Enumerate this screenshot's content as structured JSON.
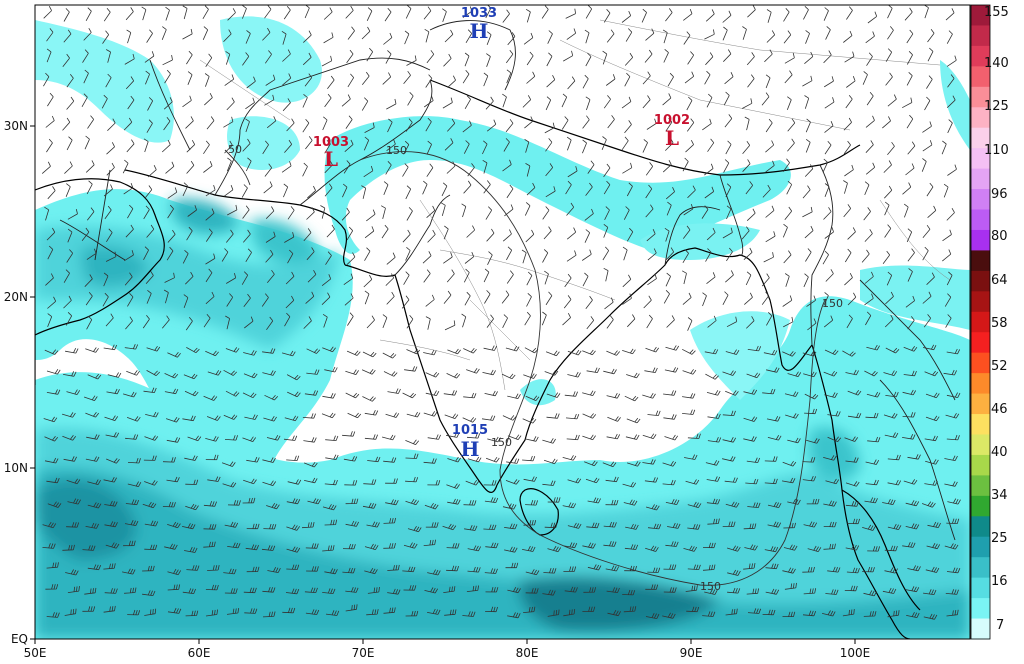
{
  "map": {
    "lat_labels": [
      "30N",
      "20N",
      "10N",
      "EQ"
    ],
    "lon_labels": [
      "50E",
      "60E",
      "70E",
      "80E",
      "90E",
      "100E"
    ],
    "pressure_centers": [
      {
        "value": "1033",
        "type": "H",
        "color": "#1f3fb5"
      },
      {
        "value": "1003",
        "type": "L",
        "color": "#c8102e"
      },
      {
        "value": "1002",
        "type": "L",
        "color": "#c8102e"
      },
      {
        "value": "1015",
        "type": "H",
        "color": "#1f3fb5"
      }
    ],
    "contour_labels": [
      "50",
      "150",
      "150",
      "150",
      "150"
    ]
  },
  "colorbar": {
    "labels": [
      "155",
      "140",
      "125",
      "110",
      "96",
      "80",
      "64",
      "58",
      "52",
      "46",
      "40",
      "34",
      "25",
      "16",
      "7"
    ],
    "colors": [
      "#9e1a3a",
      "#c22a4a",
      "#e03c5a",
      "#f2606e",
      "#fa8e98",
      "#fdb2c4",
      "#fbd0ea",
      "#f4c0f4",
      "#e4a4f4",
      "#d080f4",
      "#bc5cf4",
      "#a830f0",
      "#4a0e0e",
      "#7a1010",
      "#a61414",
      "#d41818",
      "#f52020",
      "#fd5020",
      "#fd8a2a",
      "#fdb040",
      "#fde060",
      "#dce866",
      "#a8d84a",
      "#6cc040",
      "#30a830",
      "#0f8a8a",
      "#1f9fae",
      "#3abfc8",
      "#56dde2",
      "#7af4f4",
      "#d6fcfc"
    ]
  }
}
